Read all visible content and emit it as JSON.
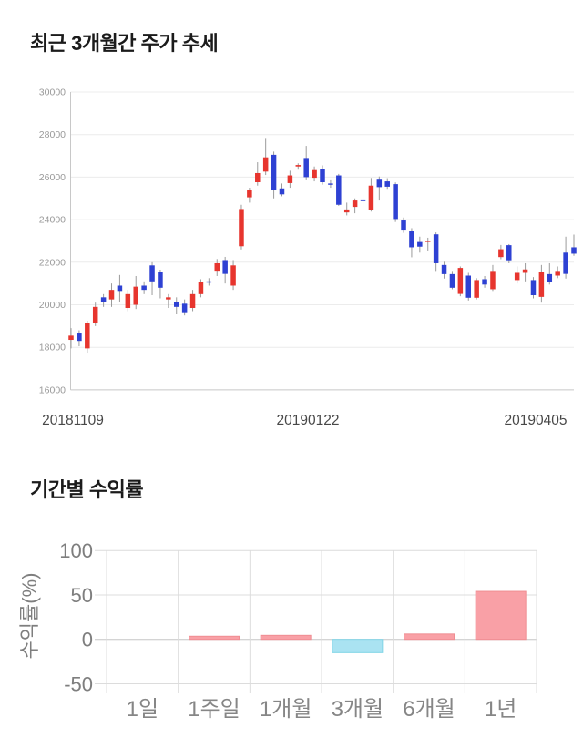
{
  "chart_data": [
    {
      "type": "candlestick",
      "title": "최근 3개월간 주가 추세",
      "x_axis_labels": [
        "20181109",
        "20190122",
        "20190405"
      ],
      "y_axis_ticks": [
        30000,
        28000,
        26000,
        24000,
        22000,
        20000,
        18000,
        16000
      ],
      "ylim": [
        16000,
        30000
      ],
      "grid": true,
      "price_low": 17750,
      "price_high": 27800,
      "last_close": 22400,
      "colors": {
        "up": "#e7352e",
        "down": "#2e41d3",
        "wick": "#9b9b9b",
        "grid": "#ececec",
        "axis": "#c8c8c8",
        "tick_text": "#999999",
        "xlabel_text": "#484848"
      },
      "candles_ohlc": [
        [
          18350,
          18900,
          17950,
          18550
        ],
        [
          18650,
          18800,
          18050,
          18300
        ],
        [
          17950,
          19250,
          17750,
          19150
        ],
        [
          19150,
          20100,
          19000,
          19900
        ],
        [
          20350,
          20500,
          19900,
          20150
        ],
        [
          20250,
          21000,
          19900,
          20700
        ],
        [
          20900,
          21400,
          20150,
          20650
        ],
        [
          19850,
          20700,
          19700,
          20500
        ],
        [
          20000,
          21350,
          19800,
          20850
        ],
        [
          20900,
          21100,
          20500,
          20700
        ],
        [
          21850,
          22000,
          20450,
          21100
        ],
        [
          21550,
          21650,
          20300,
          20800
        ],
        [
          20250,
          20500,
          19850,
          20350
        ],
        [
          20150,
          20350,
          19550,
          19900
        ],
        [
          20050,
          20250,
          19500,
          19650
        ],
        [
          19850,
          20700,
          19700,
          20500
        ],
        [
          20500,
          21200,
          20350,
          21050
        ],
        [
          21100,
          21250,
          20900,
          21060
        ],
        [
          21600,
          22150,
          21350,
          21950
        ],
        [
          22100,
          22250,
          21000,
          21450
        ],
        [
          20900,
          22100,
          20700,
          21850
        ],
        [
          22750,
          24700,
          22600,
          24500
        ],
        [
          25050,
          25500,
          24800,
          25410
        ],
        [
          25760,
          26700,
          25600,
          26190
        ],
        [
          26260,
          27800,
          26100,
          26930
        ],
        [
          27050,
          27200,
          25000,
          25400
        ],
        [
          25470,
          25700,
          25100,
          25190
        ],
        [
          25720,
          26300,
          25500,
          26080
        ],
        [
          26500,
          26650,
          26350,
          26570
        ],
        [
          26900,
          27470,
          25850,
          26000
        ],
        [
          25970,
          26500,
          25800,
          26330
        ],
        [
          26400,
          26550,
          25650,
          25760
        ],
        [
          25700,
          25850,
          25500,
          25690
        ],
        [
          26080,
          26150,
          24650,
          24700
        ],
        [
          24340,
          24800,
          24200,
          24480
        ],
        [
          24600,
          25000,
          24300,
          24900
        ],
        [
          24950,
          25150,
          24550,
          24870
        ],
        [
          24450,
          25960,
          24380,
          25600
        ],
        [
          25880,
          26030,
          24900,
          25530
        ],
        [
          25800,
          25950,
          25450,
          25550
        ],
        [
          25670,
          25750,
          23890,
          24030
        ],
        [
          23960,
          24100,
          23380,
          23530
        ],
        [
          23450,
          23600,
          22230,
          22700
        ],
        [
          22950,
          23200,
          22450,
          22730
        ],
        [
          23000,
          23150,
          22550,
          23010
        ],
        [
          23310,
          23400,
          21590,
          21950
        ],
        [
          21870,
          22020,
          21230,
          21440
        ],
        [
          21440,
          21590,
          20730,
          20800
        ],
        [
          20510,
          21800,
          20400,
          21730
        ],
        [
          21370,
          21500,
          20200,
          20330
        ],
        [
          20330,
          21250,
          20250,
          21160
        ],
        [
          21200,
          21350,
          20800,
          20950
        ],
        [
          20730,
          21870,
          20650,
          21590
        ],
        [
          22240,
          22810,
          22140,
          22610
        ],
        [
          22800,
          22850,
          21950,
          22090
        ],
        [
          21160,
          21800,
          21000,
          21500
        ],
        [
          21500,
          21950,
          21100,
          21660
        ],
        [
          21160,
          21300,
          20300,
          20450
        ],
        [
          20370,
          21870,
          20100,
          21560
        ],
        [
          21440,
          21950,
          20950,
          21090
        ],
        [
          21370,
          21800,
          21250,
          21590
        ],
        [
          22450,
          23200,
          21230,
          21450
        ],
        [
          22700,
          23300,
          22300,
          22400
        ]
      ]
    },
    {
      "type": "bar",
      "title": "기간별 수익률",
      "ylabel": "수익률(%)",
      "categories": [
        "1일",
        "1주일",
        "1개월",
        "3개월",
        "6개월",
        "1년"
      ],
      "values": [
        0,
        3.5,
        4.5,
        -15,
        6,
        54
      ],
      "y_ticks": [
        100,
        50,
        0,
        -50
      ],
      "ylim": [
        -60,
        110
      ],
      "grid": true,
      "legend": "none",
      "colors": {
        "positive": "#f9a0a6",
        "positive_border": "#ef8d92",
        "negative": "#aae3f2",
        "negative_border": "#7fd4e6",
        "grid": "#dcdcdc",
        "zero_line": "#c6c6c6",
        "tick_text": "#7e7e7e",
        "category_text": "#868686",
        "ylabel_text": "#7e7e7e"
      }
    }
  ]
}
